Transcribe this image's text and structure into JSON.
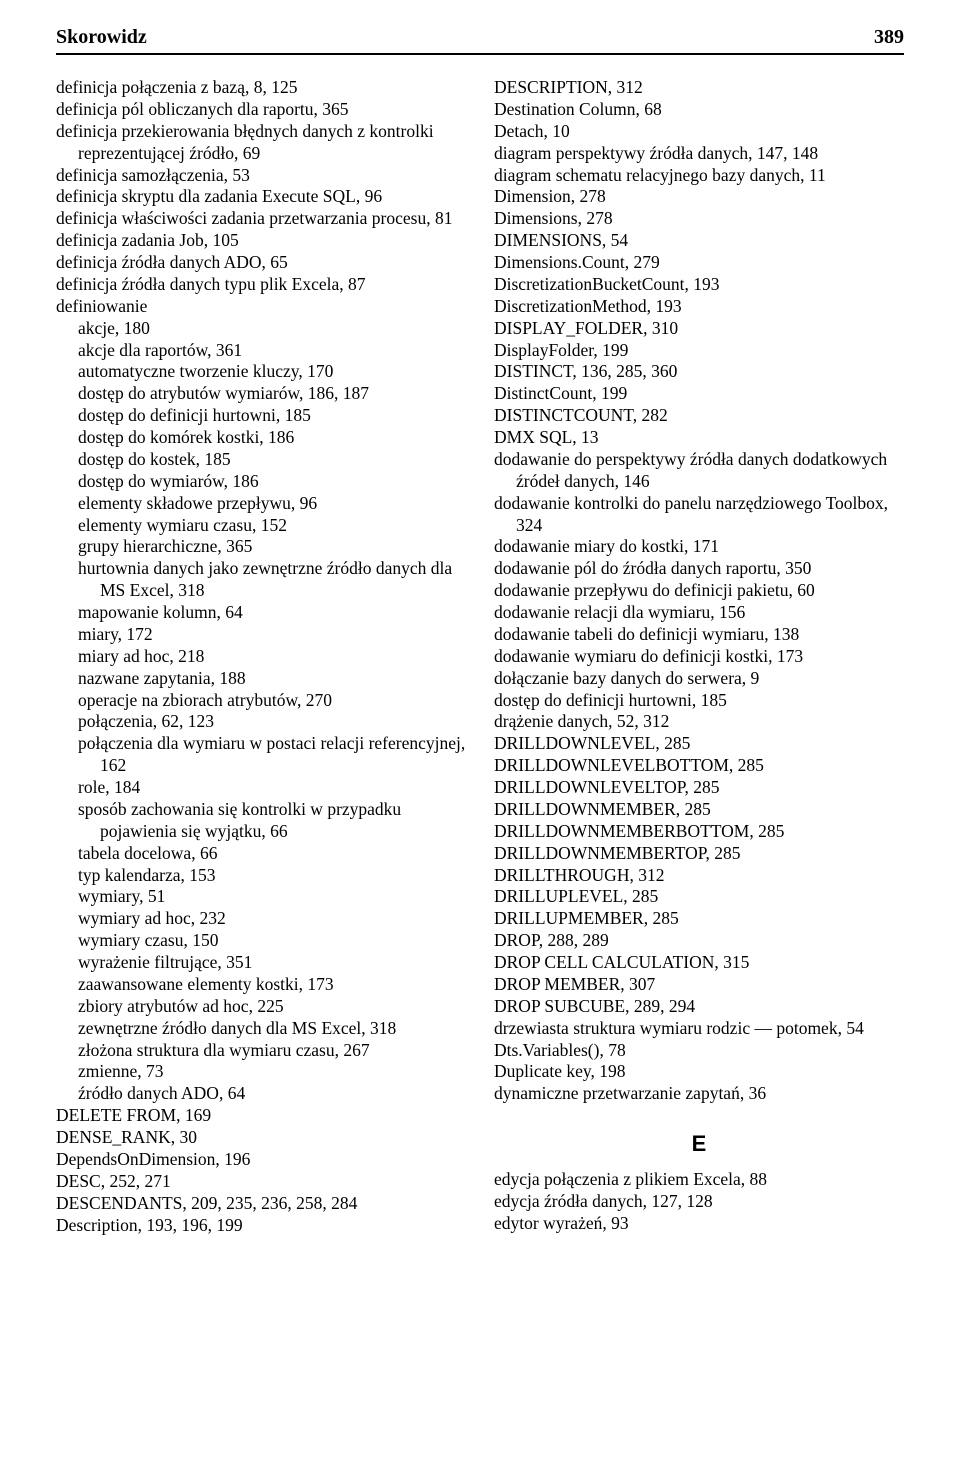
{
  "header": {
    "title": "Skorowidz",
    "page_number": "389"
  },
  "columns": {
    "left": [
      {
        "text": "definicja połączenia z bazą, 8, 125"
      },
      {
        "text": "definicja pól obliczanych dla raportu, 365"
      },
      {
        "text": "definicja przekierowania błędnych danych z kontrolki reprezentującej źródło, 69"
      },
      {
        "text": "definicja samozłączenia, 53"
      },
      {
        "text": "definicja skryptu dla zadania Execute SQL, 96"
      },
      {
        "text": "definicja właściwości zadania przetwarzania procesu, 81"
      },
      {
        "text": "definicja zadania Job, 105"
      },
      {
        "text": "definicja źródła danych ADO, 65"
      },
      {
        "text": "definicja źródła danych typu plik Excela, 87"
      },
      {
        "text": "definiowanie"
      },
      {
        "text": "akcje, 180",
        "sub": true
      },
      {
        "text": "akcje dla raportów, 361",
        "sub": true
      },
      {
        "text": "automatyczne tworzenie kluczy, 170",
        "sub": true
      },
      {
        "text": "dostęp do atrybutów wymiarów, 186, 187",
        "sub": true
      },
      {
        "text": "dostęp do definicji hurtowni, 185",
        "sub": true
      },
      {
        "text": "dostęp do komórek kostki, 186",
        "sub": true
      },
      {
        "text": "dostęp do kostek, 185",
        "sub": true
      },
      {
        "text": "dostęp do wymiarów, 186",
        "sub": true
      },
      {
        "text": "elementy składowe przepływu, 96",
        "sub": true
      },
      {
        "text": "elementy wymiaru czasu, 152",
        "sub": true
      },
      {
        "text": "grupy hierarchiczne, 365",
        "sub": true
      },
      {
        "text": "hurtownia danych jako zewnętrzne źródło danych dla MS Excel, 318",
        "sub": true
      },
      {
        "text": "mapowanie kolumn, 64",
        "sub": true
      },
      {
        "text": "miary, 172",
        "sub": true
      },
      {
        "text": "miary ad hoc, 218",
        "sub": true
      },
      {
        "text": "nazwane zapytania, 188",
        "sub": true
      },
      {
        "text": "operacje na zbiorach atrybutów, 270",
        "sub": true
      },
      {
        "text": "połączenia, 62, 123",
        "sub": true
      },
      {
        "text": "połączenia dla wymiaru w postaci relacji referencyjnej, 162",
        "sub": true
      },
      {
        "text": "role, 184",
        "sub": true
      },
      {
        "text": "sposób zachowania się kontrolki w przypadku pojawienia się wyjątku, 66",
        "sub": true
      },
      {
        "text": "tabela docelowa, 66",
        "sub": true
      },
      {
        "text": "typ kalendarza, 153",
        "sub": true
      },
      {
        "text": "wymiary, 51",
        "sub": true
      },
      {
        "text": "wymiary ad hoc, 232",
        "sub": true
      },
      {
        "text": "wymiary czasu, 150",
        "sub": true
      },
      {
        "text": "wyrażenie filtrujące, 351",
        "sub": true
      },
      {
        "text": "zaawansowane elementy kostki, 173",
        "sub": true
      },
      {
        "text": "zbiory atrybutów ad hoc, 225",
        "sub": true
      },
      {
        "text": "zewnętrzne źródło danych dla MS Excel, 318",
        "sub": true
      },
      {
        "text": "złożona struktura dla wymiaru czasu, 267",
        "sub": true
      },
      {
        "text": "zmienne, 73",
        "sub": true
      },
      {
        "text": "źródło danych ADO, 64",
        "sub": true
      },
      {
        "text": "DELETE FROM, 169"
      },
      {
        "text": "DENSE_RANK, 30"
      },
      {
        "text": "DependsOnDimension, 196"
      },
      {
        "text": "DESC, 252, 271"
      },
      {
        "text": "DESCENDANTS, 209, 235, 236, 258, 284"
      },
      {
        "text": "Description, 193, 196, 199"
      }
    ],
    "right": [
      {
        "text": "DESCRIPTION, 312"
      },
      {
        "text": "Destination Column, 68"
      },
      {
        "text": "Detach, 10"
      },
      {
        "text": "diagram perspektywy źródła danych, 147, 148"
      },
      {
        "text": "diagram schematu relacyjnego bazy danych, 11"
      },
      {
        "text": "Dimension, 278"
      },
      {
        "text": "Dimensions, 278"
      },
      {
        "text": "DIMENSIONS, 54"
      },
      {
        "text": "Dimensions.Count, 279"
      },
      {
        "text": "DiscretizationBucketCount, 193"
      },
      {
        "text": "DiscretizationMethod, 193"
      },
      {
        "text": "DISPLAY_FOLDER, 310"
      },
      {
        "text": "DisplayFolder, 199"
      },
      {
        "text": "DISTINCT, 136, 285, 360"
      },
      {
        "text": "DistinctCount, 199"
      },
      {
        "text": "DISTINCTCOUNT, 282"
      },
      {
        "text": "DMX SQL, 13"
      },
      {
        "text": "dodawanie do perspektywy źródła danych dodatkowych źródeł danych, 146"
      },
      {
        "text": "dodawanie kontrolki do panelu narzędziowego Toolbox, 324"
      },
      {
        "text": "dodawanie miary do kostki, 171"
      },
      {
        "text": "dodawanie pól do źródła danych raportu, 350"
      },
      {
        "text": "dodawanie przepływu do definicji pakietu, 60"
      },
      {
        "text": "dodawanie relacji dla wymiaru, 156"
      },
      {
        "text": "dodawanie tabeli do definicji wymiaru, 138"
      },
      {
        "text": "dodawanie wymiaru do definicji kostki, 173"
      },
      {
        "text": "dołączanie bazy danych do serwera, 9"
      },
      {
        "text": "dostęp do definicji hurtowni, 185"
      },
      {
        "text": "drążenie danych, 52, 312"
      },
      {
        "text": "DRILLDOWNLEVEL, 285"
      },
      {
        "text": "DRILLDOWNLEVELBOTTOM, 285"
      },
      {
        "text": "DRILLDOWNLEVELTOP, 285"
      },
      {
        "text": "DRILLDOWNMEMBER, 285"
      },
      {
        "text": "DRILLDOWNMEMBERBOTTOM, 285"
      },
      {
        "text": "DRILLDOWNMEMBERTOP, 285"
      },
      {
        "text": "DRILLTHROUGH, 312"
      },
      {
        "text": "DRILLUPLEVEL, 285"
      },
      {
        "text": "DRILLUPMEMBER, 285"
      },
      {
        "text": "DROP, 288, 289"
      },
      {
        "text": "DROP CELL CALCULATION, 315"
      },
      {
        "text": "DROP MEMBER, 307"
      },
      {
        "text": "DROP SUBCUBE, 289, 294"
      },
      {
        "text": "drzewiasta struktura wymiaru rodzic — potomek, 54"
      },
      {
        "text": "Dts.Variables(), 78"
      },
      {
        "text": "Duplicate key, 198"
      },
      {
        "text": "dynamiczne przetwarzanie zapytań, 36"
      }
    ],
    "section_letter": "E",
    "right_e": [
      {
        "text": "edycja połączenia z plikiem Excela, 88"
      },
      {
        "text": "edycja źródła danych, 127, 128"
      },
      {
        "text": "edytor wyrażeń, 93"
      }
    ]
  }
}
